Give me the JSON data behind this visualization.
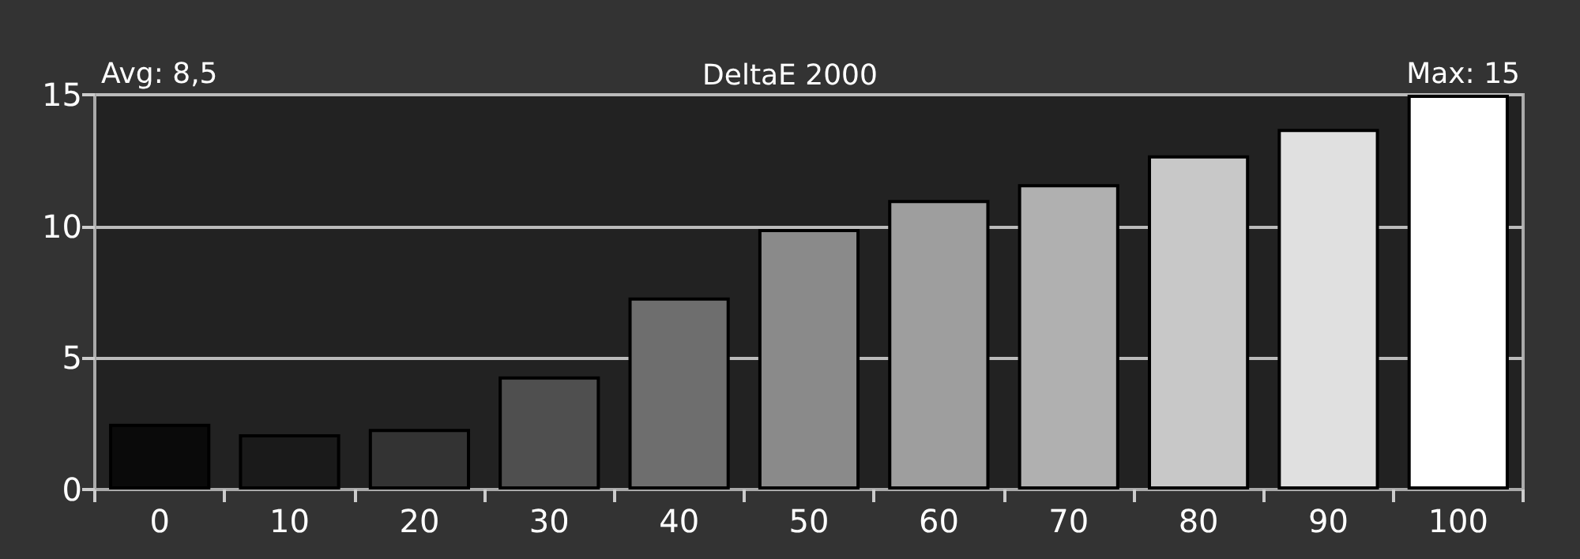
{
  "chart_data": {
    "type": "bar",
    "title": "DeltaE 2000",
    "categories": [
      "0",
      "10",
      "20",
      "30",
      "40",
      "50",
      "60",
      "70",
      "80",
      "90",
      "100"
    ],
    "values": [
      2.5,
      2.1,
      2.3,
      4.3,
      7.3,
      9.9,
      11.0,
      11.6,
      12.7,
      13.7,
      15
    ],
    "colors": [
      "#0a0a0a",
      "#1a1a1a",
      "#333333",
      "#4f4f4f",
      "#6e6e6e",
      "#8a8a8a",
      "#9e9e9e",
      "#b0b0b0",
      "#c8c8c8",
      "#e0e0e0",
      "#ffffff"
    ],
    "ylim": [
      0,
      15
    ],
    "yticks": [
      0,
      5,
      10,
      15
    ],
    "grid": "y",
    "annotations": [
      "Avg: 8,5",
      "Max: 15"
    ]
  }
}
